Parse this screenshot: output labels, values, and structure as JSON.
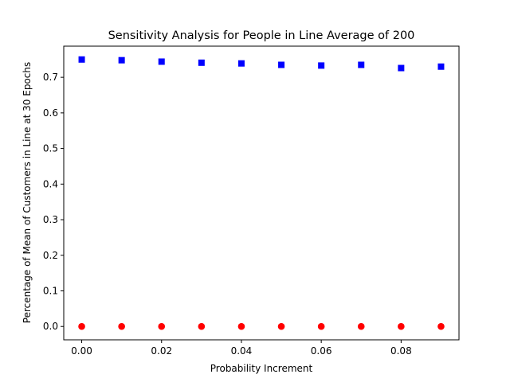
{
  "chart_data": {
    "type": "scatter",
    "title": "Sensitivity Analysis for People in Line Average of 200",
    "xlabel": "Probability Increment",
    "ylabel": "Percentage of Mean of Customers in Line at 30 Epochs",
    "xlim": [
      -0.0045,
      0.0945
    ],
    "ylim": [
      -0.0375,
      0.7875
    ],
    "xticks": [
      0.0,
      0.02,
      0.04,
      0.06,
      0.08
    ],
    "xtick_labels": [
      "0.00",
      "0.02",
      "0.04",
      "0.06",
      "0.08"
    ],
    "yticks": [
      0.0,
      0.1,
      0.2,
      0.3,
      0.4,
      0.5,
      0.6,
      0.7
    ],
    "ytick_labels": [
      "0.0",
      "0.1",
      "0.2",
      "0.3",
      "0.4",
      "0.5",
      "0.6",
      "0.7"
    ],
    "grid": false,
    "series": [
      {
        "marker": "square",
        "color": "#0000ff",
        "x": [
          0.0,
          0.01,
          0.02,
          0.03,
          0.04,
          0.05,
          0.06,
          0.07,
          0.08,
          0.09
        ],
        "y": [
          0.75,
          0.748,
          0.744,
          0.741,
          0.739,
          0.735,
          0.733,
          0.735,
          0.726,
          0.73
        ]
      },
      {
        "marker": "circle",
        "color": "#ff0000",
        "x": [
          0.0,
          0.01,
          0.02,
          0.03,
          0.04,
          0.05,
          0.06,
          0.07,
          0.08,
          0.09
        ],
        "y": [
          0.0,
          0.0,
          0.0,
          0.0,
          0.0,
          0.0,
          0.0,
          0.0,
          0.0,
          0.0
        ]
      }
    ]
  }
}
